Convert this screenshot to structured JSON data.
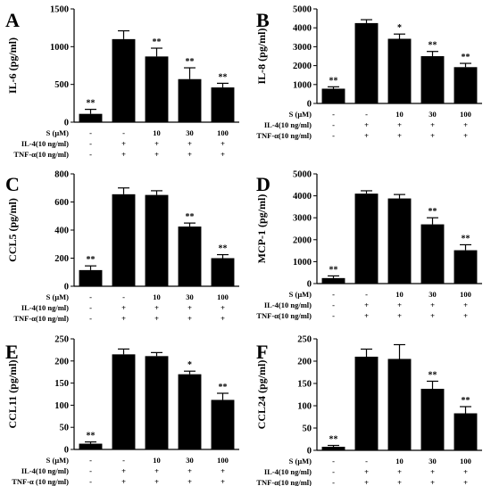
{
  "chart_data": [
    {
      "type": "bar",
      "panel": "A",
      "ylabel": "IL-6 (pg/ml)",
      "ylim": [
        0,
        1500
      ],
      "yticks": [
        0,
        500,
        1000,
        1500
      ],
      "values": [
        110,
        1100,
        870,
        570,
        460
      ],
      "errors": [
        60,
        110,
        110,
        150,
        55
      ],
      "significance": [
        "**",
        "",
        "**",
        "**",
        "**"
      ],
      "conditions": [
        {
          "label": "S (μM)",
          "values": [
            "-",
            "-",
            "10",
            "30",
            "100"
          ]
        },
        {
          "label": "IL-4(10 ng/ml)",
          "values": [
            "-",
            "+",
            "+",
            "+",
            "+"
          ]
        },
        {
          "label": "TNF-α(10 ng/ml)",
          "values": [
            "-",
            "+",
            "+",
            "+",
            "+"
          ]
        }
      ]
    },
    {
      "type": "bar",
      "panel": "B",
      "ylabel": "IL-8 (pg/ml)",
      "ylim": [
        0,
        5000
      ],
      "yticks": [
        0,
        1000,
        2000,
        3000,
        4000,
        5000
      ],
      "values": [
        780,
        4250,
        3420,
        2500,
        1920
      ],
      "errors": [
        100,
        180,
        250,
        250,
        200
      ],
      "significance": [
        "**",
        "",
        "*",
        "**",
        "**"
      ],
      "conditions": [
        {
          "label": "S (μM)",
          "values": [
            "-",
            "-",
            "10",
            "30",
            "100"
          ]
        },
        {
          "label": "IL-4(10 ng/ml)",
          "values": [
            "-",
            "+",
            "+",
            "+",
            "+"
          ]
        },
        {
          "label": "TNF-α(10 ng/ml)",
          "values": [
            "-",
            "+",
            "+",
            "+",
            "+"
          ]
        }
      ]
    },
    {
      "type": "bar",
      "panel": "C",
      "ylabel": "CCL5 (pg/ml)",
      "ylim": [
        0,
        800
      ],
      "yticks": [
        0,
        200,
        400,
        600,
        800
      ],
      "values": [
        115,
        655,
        650,
        425,
        200
      ],
      "errors": [
        30,
        45,
        30,
        25,
        25
      ],
      "significance": [
        "**",
        "",
        "",
        "**",
        "**"
      ],
      "conditions": [
        {
          "label": "S (μM)",
          "values": [
            "-",
            "-",
            "10",
            "30",
            "100"
          ]
        },
        {
          "label": "IL-4(10 ng/ml)",
          "values": [
            "-",
            "+",
            "+",
            "+",
            "+"
          ]
        },
        {
          "label": "TNF-α(10 ng/ml)",
          "values": [
            "-",
            "+",
            "+",
            "+",
            "+"
          ]
        }
      ]
    },
    {
      "type": "bar",
      "panel": "D",
      "ylabel": "MCP-1 (pg/ml)",
      "ylim": [
        0,
        5000
      ],
      "yticks": [
        0,
        1000,
        2000,
        3000,
        4000,
        5000
      ],
      "values": [
        250,
        4100,
        3880,
        2700,
        1520
      ],
      "errors": [
        100,
        130,
        180,
        300,
        250
      ],
      "significance": [
        "**",
        "",
        "",
        "**",
        "**"
      ],
      "conditions": [
        {
          "label": "S (μM)",
          "values": [
            "-",
            "-",
            "10",
            "30",
            "100"
          ]
        },
        {
          "label": "IL-4(10 ng/ml)",
          "values": [
            "-",
            "+",
            "+",
            "+",
            "+"
          ]
        },
        {
          "label": "TNF-α(10 ng/ml)",
          "values": [
            "-",
            "+",
            "+",
            "+",
            "+"
          ]
        }
      ]
    },
    {
      "type": "bar",
      "panel": "E",
      "ylabel": "CCL11 (pg/ml)",
      "ylim": [
        0,
        250
      ],
      "yticks": [
        0,
        50,
        100,
        150,
        200,
        250
      ],
      "values": [
        13,
        215,
        211,
        170,
        112
      ],
      "errors": [
        4,
        12,
        8,
        7,
        15
      ],
      "significance": [
        "**",
        "",
        "",
        "*",
        "**"
      ],
      "conditions": [
        {
          "label": "S (μM)",
          "values": [
            "-",
            "-",
            "10",
            "30",
            "100"
          ]
        },
        {
          "label": "IL-4(10 ng/ml)",
          "values": [
            "-",
            "+",
            "+",
            "+",
            "+"
          ]
        },
        {
          "label": "TNF-α (10 ng/ml)",
          "values": [
            "-",
            "+",
            "+",
            "+",
            "+"
          ]
        }
      ]
    },
    {
      "type": "bar",
      "panel": "F",
      "ylabel": "CCL24 (pg/ml)",
      "ylim": [
        0,
        250
      ],
      "yticks": [
        0,
        50,
        100,
        150,
        200,
        250
      ],
      "values": [
        8,
        210,
        205,
        138,
        83
      ],
      "errors": [
        3,
        17,
        32,
        17,
        15
      ],
      "significance": [
        "**",
        "",
        "",
        "**",
        "**"
      ],
      "conditions": [
        {
          "label": "S (μM)",
          "values": [
            "-",
            "-",
            "10",
            "30",
            "100"
          ]
        },
        {
          "label": "IL-4(10 ng/ml)",
          "values": [
            "-",
            "+",
            "+",
            "+",
            "+"
          ]
        },
        {
          "label": "TNF-α(10 ng/ml)",
          "values": [
            "-",
            "+",
            "+",
            "+",
            "+"
          ]
        }
      ]
    }
  ]
}
